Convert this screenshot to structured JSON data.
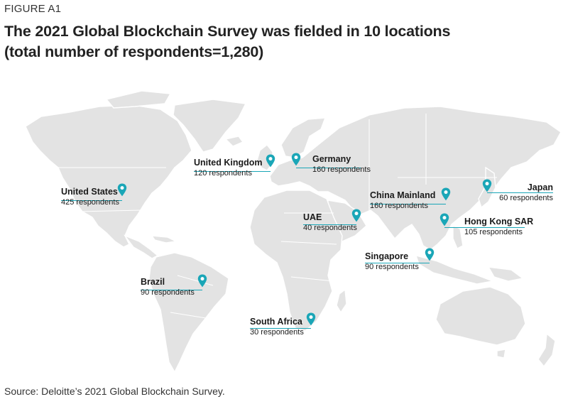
{
  "figure_label": "FIGURE A1",
  "title_line1": "The 2021 Global Blockchain Survey was fielded in 10 locations",
  "title_line2": "(total number of respondents=1,280)",
  "source": "Source: Deloitte’s 2021 Global Blockchain Survey.",
  "colors": {
    "pin": "#1aa6b7",
    "land": "#e3e3e3",
    "text": "#1a1a1a"
  },
  "locations": [
    {
      "name": "United States",
      "respondents": "425 respondents"
    },
    {
      "name": "United Kingdom",
      "respondents": "120 respondents"
    },
    {
      "name": "Germany",
      "respondents": "160 respondents"
    },
    {
      "name": "Japan",
      "respondents": "60 respondents"
    },
    {
      "name": "China Mainland",
      "respondents": "160 respondents"
    },
    {
      "name": "UAE",
      "respondents": "40 respondents"
    },
    {
      "name": "Hong Kong SAR",
      "respondents": "105 respondents"
    },
    {
      "name": "Singapore",
      "respondents": "90 respondents"
    },
    {
      "name": "Brazil",
      "respondents": "90 respondents"
    },
    {
      "name": "South Africa",
      "respondents": "30 respondents"
    }
  ]
}
